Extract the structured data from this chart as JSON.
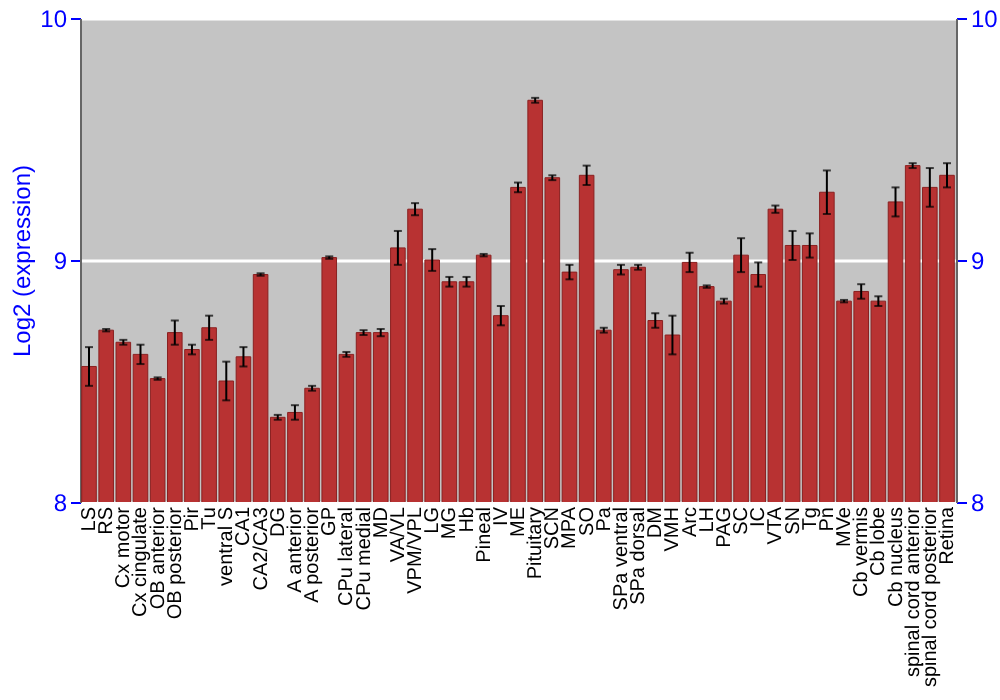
{
  "chart_data": {
    "type": "bar",
    "ylabel": "Log2 (expression)",
    "categories": [
      "LS",
      "RS",
      "Cx motor",
      "Cx cingulate",
      "OB anterior",
      "OB posterior",
      "Pir",
      "Tu",
      "ventral S",
      "CA1",
      "CA2/CA3",
      "DG",
      "A anterior",
      "A posterior",
      "GP",
      "CPu lateral",
      "CPu medial",
      "MD",
      "VA/VL",
      "VPM/VPL",
      "LG",
      "MG",
      "Hb",
      "Pineal",
      "IV",
      "ME",
      "Pituitary",
      "SCN",
      "MPA",
      "SO",
      "Pa",
      "SPa ventral",
      "SPa dorsal",
      "DM",
      "VMH",
      "Arc",
      "LH",
      "PAG",
      "SC",
      "IC",
      "VTA",
      "SN",
      "Tg",
      "Pn",
      "MVe",
      "Cb vermis",
      "Cb lobe",
      "Cb nucleus",
      "spinal cord anterior",
      "spinal cord posterior",
      "Retina"
    ],
    "values": [
      8.56,
      8.71,
      8.66,
      8.61,
      8.51,
      8.7,
      8.63,
      8.72,
      8.5,
      8.6,
      8.94,
      8.35,
      8.37,
      8.47,
      9.01,
      8.61,
      8.7,
      8.7,
      9.05,
      9.21,
      9.0,
      8.91,
      8.91,
      9.02,
      8.77,
      9.3,
      9.66,
      9.34,
      8.95,
      9.35,
      8.71,
      8.96,
      8.97,
      8.75,
      8.69,
      8.99,
      8.89,
      8.83,
      9.02,
      8.94,
      9.21,
      9.06,
      9.06,
      9.28,
      8.83,
      8.87,
      8.83,
      9.24,
      9.39,
      9.3,
      9.35
    ],
    "errors": [
      0.08,
      0.005,
      0.01,
      0.04,
      0.005,
      0.05,
      0.02,
      0.05,
      0.08,
      0.04,
      0.005,
      0.01,
      0.03,
      0.01,
      0.005,
      0.01,
      0.01,
      0.015,
      0.07,
      0.025,
      0.045,
      0.02,
      0.02,
      0.005,
      0.04,
      0.02,
      0.01,
      0.01,
      0.03,
      0.04,
      0.01,
      0.02,
      0.01,
      0.03,
      0.08,
      0.04,
      0.005,
      0.01,
      0.07,
      0.05,
      0.015,
      0.06,
      0.05,
      0.09,
      0.005,
      0.03,
      0.02,
      0.06,
      0.01,
      0.08,
      0.05
    ],
    "color": "#b83232",
    "ylim": [
      8,
      10
    ],
    "yticks": [
      8,
      9,
      10
    ],
    "y2lim": [
      8,
      10
    ],
    "y2ticks": [
      8,
      9,
      10
    ],
    "grid": "y"
  }
}
